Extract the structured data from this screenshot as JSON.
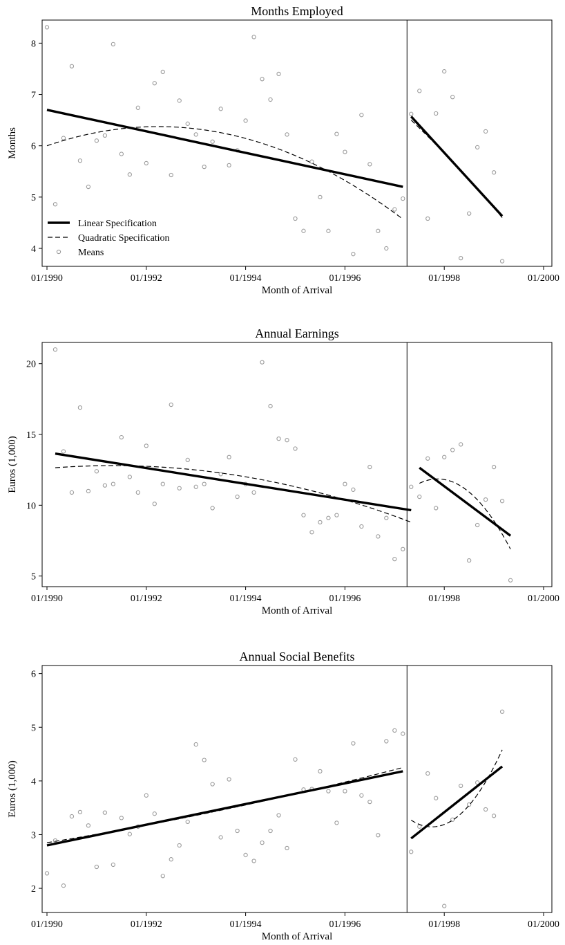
{
  "legend": {
    "items": [
      {
        "label": "Linear Specification",
        "style": "solid-thick"
      },
      {
        "label": "Quadratic Specification",
        "style": "dashed"
      },
      {
        "label": "Means",
        "style": "hollow-circle"
      }
    ]
  },
  "chart_data": [
    {
      "type": "scatter",
      "title": "Months Employed",
      "xlabel": "Month of Arrival",
      "ylabel": "Months",
      "xlim": [
        "1990-01",
        "2000-01"
      ],
      "ylim": [
        3.65,
        8.45
      ],
      "xticks": [
        "01/1990",
        "01/1992",
        "01/1994",
        "01/1996",
        "01/1998",
        "01/2000"
      ],
      "yticks": [
        4,
        5,
        6,
        7,
        8
      ],
      "cutoff": "1997-04",
      "colors": {
        "means": "#9a9a9a",
        "fit": "#000000"
      },
      "means": [
        [
          "1990-01",
          8.31
        ],
        [
          "1990-03",
          4.86
        ],
        [
          "1990-05",
          6.15
        ],
        [
          "1990-07",
          7.55
        ],
        [
          "1990-09",
          5.71
        ],
        [
          "1990-11",
          5.2
        ],
        [
          "1991-01",
          6.1
        ],
        [
          "1991-03",
          6.2
        ],
        [
          "1991-05",
          7.98
        ],
        [
          "1991-07",
          5.84
        ],
        [
          "1991-09",
          5.44
        ],
        [
          "1991-11",
          6.74
        ],
        [
          "1992-01",
          5.66
        ],
        [
          "1992-03",
          7.22
        ],
        [
          "1992-05",
          7.44
        ],
        [
          "1992-07",
          5.43
        ],
        [
          "1992-09",
          6.88
        ],
        [
          "1992-11",
          6.43
        ],
        [
          "1993-01",
          6.22
        ],
        [
          "1993-03",
          5.59
        ],
        [
          "1993-05",
          6.08
        ],
        [
          "1993-07",
          6.72
        ],
        [
          "1993-09",
          5.62
        ],
        [
          "1993-11",
          5.91
        ],
        [
          "1994-01",
          6.49
        ],
        [
          "1994-03",
          8.12
        ],
        [
          "1994-05",
          7.3
        ],
        [
          "1994-07",
          6.9
        ],
        [
          "1994-09",
          7.4
        ],
        [
          "1994-11",
          6.22
        ],
        [
          "1995-01",
          4.58
        ],
        [
          "1995-03",
          4.34
        ],
        [
          "1995-05",
          5.69
        ],
        [
          "1995-07",
          5.0
        ],
        [
          "1995-09",
          4.34
        ],
        [
          "1995-11",
          6.23
        ],
        [
          "1996-01",
          5.88
        ],
        [
          "1996-03",
          3.89
        ],
        [
          "1996-05",
          6.6
        ],
        [
          "1996-07",
          5.64
        ],
        [
          "1996-09",
          4.34
        ],
        [
          "1996-11",
          4.0
        ],
        [
          "1997-01",
          4.76
        ],
        [
          "1997-03",
          4.97
        ],
        [
          "1997-05",
          6.62
        ],
        [
          "1997-07",
          7.07
        ],
        [
          "1997-09",
          4.58
        ],
        [
          "1997-11",
          6.63
        ],
        [
          "1998-01",
          7.45
        ],
        [
          "1998-03",
          6.95
        ],
        [
          "1998-05",
          3.81
        ],
        [
          "1998-07",
          4.68
        ],
        [
          "1998-09",
          5.97
        ],
        [
          "1998-11",
          6.28
        ],
        [
          "1999-01",
          5.48
        ],
        [
          "1999-03",
          3.75
        ]
      ],
      "linear": [
        {
          "x": [
            "1990-01",
            "1997-03"
          ],
          "y": [
            6.7,
            5.2
          ]
        },
        {
          "x": [
            "1997-05",
            "1999-03"
          ],
          "y": [
            6.57,
            4.63
          ]
        }
      ],
      "quadratic": [
        {
          "x": [
            "1990-01",
            "1992-09",
            "1997-03"
          ],
          "y": [
            6.0,
            6.36,
            4.57
          ]
        },
        {
          "x": [
            "1997-05",
            "1998-04",
            "1999-03"
          ],
          "y": [
            6.5,
            5.6,
            4.6
          ]
        }
      ],
      "legend_position": "bottom-left"
    },
    {
      "type": "scatter",
      "title": "Annual Earnings",
      "xlabel": "Month of Arrival",
      "ylabel": "Euros (1,000)",
      "xlim": [
        "1990-01",
        "2000-01"
      ],
      "ylim": [
        4.25,
        21.5
      ],
      "xticks": [
        "01/1990",
        "01/1992",
        "01/1994",
        "01/1996",
        "01/1998",
        "01/2000"
      ],
      "yticks": [
        5,
        10,
        15,
        20
      ],
      "cutoff": "1997-04",
      "colors": {
        "means": "#9a9a9a",
        "fit": "#000000"
      },
      "means": [
        [
          "1990-03",
          21.0
        ],
        [
          "1990-05",
          13.8
        ],
        [
          "1990-07",
          10.9
        ],
        [
          "1990-09",
          16.9
        ],
        [
          "1990-11",
          11.0
        ],
        [
          "1991-01",
          12.4
        ],
        [
          "1991-03",
          11.4
        ],
        [
          "1991-05",
          11.5
        ],
        [
          "1991-07",
          14.8
        ],
        [
          "1991-09",
          12.0
        ],
        [
          "1991-11",
          10.9
        ],
        [
          "1992-01",
          14.2
        ],
        [
          "1992-03",
          10.1
        ],
        [
          "1992-05",
          11.5
        ],
        [
          "1992-07",
          17.1
        ],
        [
          "1992-09",
          11.2
        ],
        [
          "1992-11",
          13.2
        ],
        [
          "1993-01",
          11.3
        ],
        [
          "1993-03",
          11.5
        ],
        [
          "1993-05",
          9.8
        ],
        [
          "1993-07",
          12.2
        ],
        [
          "1993-09",
          13.4
        ],
        [
          "1993-11",
          10.6
        ],
        [
          "1994-01",
          11.5
        ],
        [
          "1994-03",
          10.9
        ],
        [
          "1994-05",
          20.1
        ],
        [
          "1994-07",
          17.0
        ],
        [
          "1994-09",
          14.7
        ],
        [
          "1994-11",
          14.6
        ],
        [
          "1995-01",
          14.0
        ],
        [
          "1995-03",
          9.3
        ],
        [
          "1995-05",
          8.1
        ],
        [
          "1995-07",
          8.8
        ],
        [
          "1995-09",
          9.1
        ],
        [
          "1995-11",
          9.3
        ],
        [
          "1996-01",
          11.5
        ],
        [
          "1996-03",
          11.1
        ],
        [
          "1996-05",
          8.5
        ],
        [
          "1996-07",
          12.7
        ],
        [
          "1996-09",
          7.8
        ],
        [
          "1996-11",
          9.1
        ],
        [
          "1997-01",
          6.2
        ],
        [
          "1997-03",
          6.9
        ],
        [
          "1997-05",
          11.3
        ],
        [
          "1997-07",
          10.6
        ],
        [
          "1997-09",
          13.3
        ],
        [
          "1997-11",
          9.8
        ],
        [
          "1998-01",
          13.4
        ],
        [
          "1998-03",
          13.9
        ],
        [
          "1998-05",
          14.3
        ],
        [
          "1998-07",
          6.1
        ],
        [
          "1998-09",
          8.6
        ],
        [
          "1998-11",
          10.4
        ],
        [
          "1999-01",
          12.7
        ],
        [
          "1999-03",
          10.3
        ],
        [
          "1999-05",
          4.7
        ]
      ],
      "linear": [
        {
          "x": [
            "1990-03",
            "1997-05"
          ],
          "y": [
            13.65,
            9.65
          ]
        },
        {
          "x": [
            "1997-07",
            "1999-05"
          ],
          "y": [
            12.65,
            7.85
          ]
        }
      ],
      "quadratic": [
        {
          "x": [
            "1990-03",
            "1991-06",
            "1997-05"
          ],
          "y": [
            12.65,
            12.8,
            8.8
          ]
        },
        {
          "x": [
            "1997-07",
            "1998-02",
            "1999-05"
          ],
          "y": [
            11.55,
            11.75,
            6.9
          ]
        }
      ],
      "legend_position": "none"
    },
    {
      "type": "scatter",
      "title": "Annual Social Benefits",
      "xlabel": "Month of Arrival",
      "ylabel": "Euros (1,000)",
      "xlim": [
        "1990-01",
        "2000-01"
      ],
      "ylim": [
        1.55,
        6.15
      ],
      "xticks": [
        "01/1990",
        "01/1992",
        "01/1994",
        "01/1996",
        "01/1998",
        "01/2000"
      ],
      "yticks": [
        2,
        3,
        4,
        5,
        6
      ],
      "cutoff": "1997-04",
      "colors": {
        "means": "#9a9a9a",
        "fit": "#000000"
      },
      "means": [
        [
          "1990-01",
          2.28
        ],
        [
          "1990-03",
          2.89
        ],
        [
          "1990-05",
          2.05
        ],
        [
          "1990-07",
          3.34
        ],
        [
          "1990-09",
          3.42
        ],
        [
          "1990-11",
          3.17
        ],
        [
          "1991-01",
          2.4
        ],
        [
          "1991-03",
          3.41
        ],
        [
          "1991-05",
          2.44
        ],
        [
          "1991-07",
          3.31
        ],
        [
          "1991-09",
          3.01
        ],
        [
          "1991-11",
          3.15
        ],
        [
          "1992-01",
          3.73
        ],
        [
          "1992-03",
          3.39
        ],
        [
          "1992-05",
          2.23
        ],
        [
          "1992-07",
          2.54
        ],
        [
          "1992-09",
          2.8
        ],
        [
          "1992-11",
          3.24
        ],
        [
          "1993-01",
          4.68
        ],
        [
          "1993-03",
          4.39
        ],
        [
          "1993-05",
          3.94
        ],
        [
          "1993-07",
          2.95
        ],
        [
          "1993-09",
          4.03
        ],
        [
          "1993-11",
          3.07
        ],
        [
          "1994-01",
          2.62
        ],
        [
          "1994-03",
          2.51
        ],
        [
          "1994-05",
          2.85
        ],
        [
          "1994-07",
          3.07
        ],
        [
          "1994-09",
          3.36
        ],
        [
          "1994-11",
          2.75
        ],
        [
          "1995-01",
          4.4
        ],
        [
          "1995-03",
          3.84
        ],
        [
          "1995-05",
          3.85
        ],
        [
          "1995-07",
          4.18
        ],
        [
          "1995-09",
          3.81
        ],
        [
          "1995-11",
          3.22
        ],
        [
          "1996-01",
          3.81
        ],
        [
          "1996-03",
          4.7
        ],
        [
          "1996-05",
          3.73
        ],
        [
          "1996-07",
          3.61
        ],
        [
          "1996-09",
          2.99
        ],
        [
          "1996-11",
          4.74
        ],
        [
          "1997-01",
          4.94
        ],
        [
          "1997-03",
          4.88
        ],
        [
          "1997-05",
          2.68
        ],
        [
          "1997-07",
          3.15
        ],
        [
          "1997-09",
          4.14
        ],
        [
          "1997-11",
          3.68
        ],
        [
          "1998-01",
          1.67
        ],
        [
          "1998-03",
          3.28
        ],
        [
          "1998-05",
          3.91
        ],
        [
          "1998-07",
          3.56
        ],
        [
          "1998-09",
          3.97
        ],
        [
          "1998-11",
          3.47
        ],
        [
          "1999-01",
          3.35
        ],
        [
          "1999-03",
          5.29
        ]
      ],
      "linear": [
        {
          "x": [
            "1990-01",
            "1997-03"
          ],
          "y": [
            2.8,
            4.18
          ]
        },
        {
          "x": [
            "1997-05",
            "1999-03"
          ],
          "y": [
            2.93,
            4.27
          ]
        }
      ],
      "quadratic": [
        {
          "x": [
            "1990-01",
            "1993-08",
            "1997-03"
          ],
          "y": [
            2.85,
            3.47,
            4.25
          ]
        },
        {
          "x": [
            "1997-05",
            "1997-11",
            "1999-03"
          ],
          "y": [
            3.27,
            3.15,
            4.58
          ]
        }
      ],
      "legend_position": "none"
    }
  ]
}
